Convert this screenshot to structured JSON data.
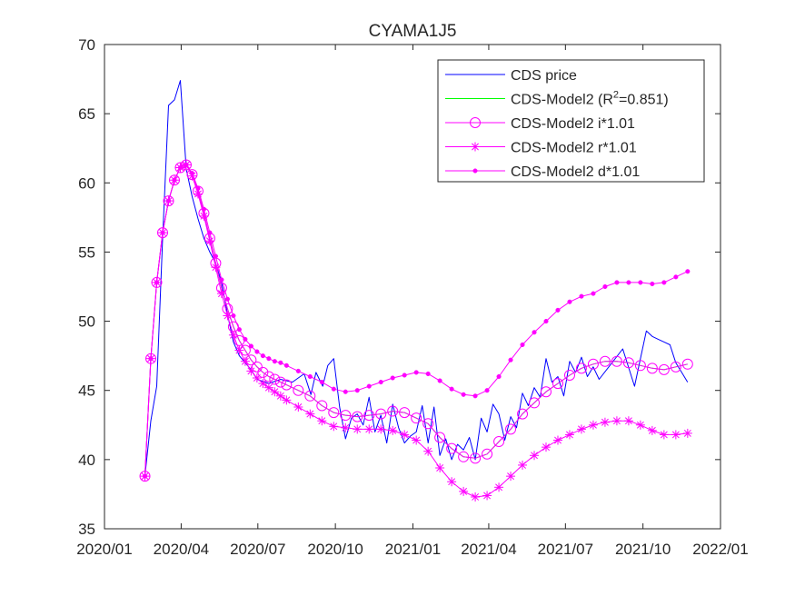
{
  "chart_data": {
    "type": "line",
    "title": "CYAMA1J5",
    "xlabel": "",
    "ylabel": "",
    "x_is_date": true,
    "xlim": [
      "2020-01-01",
      "2022-01-01"
    ],
    "ylim": [
      35,
      70
    ],
    "x_ticks": [
      "2020-01-01",
      "2020-04-01",
      "2020-07-01",
      "2020-10-01",
      "2021-01-01",
      "2021-04-01",
      "2021-07-01",
      "2021-10-01",
      "2022-01-01"
    ],
    "x_tick_labels": [
      "2020/01",
      "2020/04",
      "2020/07",
      "2020/10",
      "2021/01",
      "2021/04",
      "2021/07",
      "2021/10",
      "2022/01"
    ],
    "y_ticks": [
      35,
      40,
      45,
      50,
      55,
      60,
      65,
      70
    ],
    "y_tick_labels": [
      "35",
      "40",
      "45",
      "50",
      "55",
      "60",
      "65",
      "70"
    ],
    "grid": false,
    "legend_position": "top-right",
    "colors": {
      "price": "#0000ff",
      "model": "#00ff00",
      "sens": "#ff00ff",
      "axis": "#262626"
    },
    "legend": [
      {
        "label": "CDS price",
        "marker": "none",
        "color": "#0000ff"
      },
      {
        "label_pre": "CDS-Model2 (R",
        "label_sup": "2",
        "label_post": "=0.851)",
        "marker": "none",
        "color": "#00ff00"
      },
      {
        "label": "CDS-Model2 i*1.01",
        "marker": "circle",
        "color": "#ff00ff"
      },
      {
        "label": "CDS-Model2 r*1.01",
        "marker": "star",
        "color": "#ff00ff"
      },
      {
        "label": "CDS-Model2 d*1.01",
        "marker": "dot",
        "color": "#ff00ff"
      }
    ],
    "series": [
      {
        "name": "CDS price",
        "color": "#0000ff",
        "marker": "none",
        "x": [
          "2020-02-18",
          "2020-02-25",
          "2020-03-03",
          "2020-03-10",
          "2020-03-17",
          "2020-03-24",
          "2020-03-31",
          "2020-04-07",
          "2020-04-14",
          "2020-04-21",
          "2020-04-28",
          "2020-05-05",
          "2020-05-12",
          "2020-05-19",
          "2020-05-26",
          "2020-06-02",
          "2020-06-09",
          "2020-06-16",
          "2020-06-23",
          "2020-06-30",
          "2020-07-14",
          "2020-07-28",
          "2020-08-11",
          "2020-08-25",
          "2020-09-02",
          "2020-09-08",
          "2020-09-16",
          "2020-09-22",
          "2020-09-29",
          "2020-10-06",
          "2020-10-13",
          "2020-10-20",
          "2020-10-27",
          "2020-11-03",
          "2020-11-10",
          "2020-11-17",
          "2020-11-24",
          "2020-12-01",
          "2020-12-08",
          "2020-12-15",
          "2020-12-22",
          "2020-12-29",
          "2021-01-05",
          "2021-01-12",
          "2021-01-19",
          "2021-01-26",
          "2021-02-02",
          "2021-02-09",
          "2021-02-16",
          "2021-02-23",
          "2021-03-02",
          "2021-03-09",
          "2021-03-16",
          "2021-03-23",
          "2021-03-30",
          "2021-04-06",
          "2021-04-13",
          "2021-04-20",
          "2021-04-27",
          "2021-05-04",
          "2021-05-11",
          "2021-05-18",
          "2021-05-25",
          "2021-06-01",
          "2021-06-08",
          "2021-06-15",
          "2021-06-22",
          "2021-06-29",
          "2021-07-06",
          "2021-07-13",
          "2021-07-20",
          "2021-07-27",
          "2021-08-03",
          "2021-08-10",
          "2021-08-24",
          "2021-09-07",
          "2021-09-21",
          "2021-10-05",
          "2021-10-12",
          "2021-10-19",
          "2021-10-26",
          "2021-11-02",
          "2021-11-09",
          "2021-11-16",
          "2021-11-23"
        ],
        "y": [
          38.8,
          42.8,
          45.3,
          56.0,
          65.6,
          66.0,
          67.4,
          61.0,
          59.0,
          57.4,
          56.0,
          55.0,
          54.2,
          52.8,
          50.5,
          48.5,
          47.5,
          47.0,
          46.5,
          45.8,
          45.5,
          45.8,
          45.6,
          46.2,
          44.7,
          46.3,
          45.3,
          46.8,
          47.3,
          43.8,
          41.5,
          43.0,
          43.3,
          42.5,
          44.5,
          42.0,
          43.2,
          41.2,
          44.0,
          42.3,
          41.2,
          41.7,
          42.0,
          43.9,
          41.2,
          43.8,
          40.3,
          41.5,
          40.0,
          41.1,
          40.7,
          41.6,
          40.0,
          43.0,
          42.0,
          44.0,
          43.3,
          41.4,
          43.1,
          42.3,
          44.8,
          43.9,
          45.2,
          44.5,
          47.3,
          45.6,
          46.0,
          44.6,
          47.1,
          46.3,
          47.4,
          46.0,
          46.7,
          45.8,
          46.9,
          48.0,
          45.3,
          49.3,
          48.9,
          48.7,
          48.5,
          48.3,
          47.0,
          46.3,
          45.6
        ]
      },
      {
        "name": "CDS-Model2 (R2=0.851)",
        "color": "#00ff00",
        "marker": "none",
        "x": [
          "2020-02-18",
          "2020-02-25",
          "2020-03-03",
          "2020-03-10",
          "2020-03-17",
          "2020-03-24",
          "2020-03-31",
          "2020-04-07",
          "2020-04-14",
          "2020-04-21",
          "2020-04-28",
          "2020-05-05",
          "2020-05-12",
          "2020-05-19",
          "2020-05-26",
          "2020-06-02",
          "2020-06-09",
          "2020-06-16",
          "2020-06-23",
          "2020-06-30",
          "2020-07-07",
          "2020-07-14",
          "2020-07-21",
          "2020-07-28",
          "2020-08-04",
          "2020-08-18",
          "2020-09-01",
          "2020-09-15",
          "2020-09-29",
          "2020-10-13",
          "2020-10-27",
          "2020-11-10",
          "2020-11-24",
          "2020-12-08",
          "2020-12-22",
          "2021-01-05",
          "2021-01-19",
          "2021-02-02",
          "2021-02-16",
          "2021-03-02",
          "2021-03-16",
          "2021-03-30",
          "2021-04-13",
          "2021-04-27",
          "2021-05-11",
          "2021-05-25",
          "2021-06-08",
          "2021-06-22",
          "2021-07-06",
          "2021-07-20",
          "2021-08-03",
          "2021-08-17",
          "2021-08-31",
          "2021-09-14",
          "2021-09-28",
          "2021-10-12",
          "2021-10-26",
          "2021-11-09",
          "2021-11-23"
        ],
        "y": [
          38.8,
          47.3,
          52.8,
          56.4,
          58.7,
          60.2,
          61.1,
          61.3,
          60.6,
          59.4,
          57.8,
          56.0,
          54.2,
          52.4,
          50.9,
          49.6,
          48.6,
          47.9,
          47.2,
          46.7,
          46.3,
          46.0,
          45.8,
          45.6,
          45.4,
          45.0,
          44.6,
          43.9,
          43.4,
          43.2,
          43.1,
          43.2,
          43.3,
          43.5,
          43.4,
          43.0,
          42.6,
          41.6,
          40.8,
          40.2,
          40.1,
          40.4,
          41.3,
          42.2,
          43.3,
          44.1,
          44.9,
          45.5,
          46.1,
          46.6,
          46.9,
          47.1,
          47.1,
          47.0,
          46.8,
          46.6,
          46.5,
          46.7,
          46.9
        ]
      },
      {
        "name": "CDS-Model2 i*1.01",
        "color": "#ff00ff",
        "marker": "circle",
        "x": [
          "2020-02-18",
          "2020-02-25",
          "2020-03-03",
          "2020-03-10",
          "2020-03-17",
          "2020-03-24",
          "2020-03-31",
          "2020-04-07",
          "2020-04-14",
          "2020-04-21",
          "2020-04-28",
          "2020-05-05",
          "2020-05-12",
          "2020-05-19",
          "2020-05-26",
          "2020-06-02",
          "2020-06-09",
          "2020-06-16",
          "2020-06-23",
          "2020-06-30",
          "2020-07-07",
          "2020-07-14",
          "2020-07-21",
          "2020-07-28",
          "2020-08-04",
          "2020-08-18",
          "2020-09-01",
          "2020-09-15",
          "2020-09-29",
          "2020-10-13",
          "2020-10-27",
          "2020-11-10",
          "2020-11-24",
          "2020-12-08",
          "2020-12-22",
          "2021-01-05",
          "2021-01-19",
          "2021-02-02",
          "2021-02-16",
          "2021-03-02",
          "2021-03-16",
          "2021-03-30",
          "2021-04-13",
          "2021-04-27",
          "2021-05-11",
          "2021-05-25",
          "2021-06-08",
          "2021-06-22",
          "2021-07-06",
          "2021-07-20",
          "2021-08-03",
          "2021-08-17",
          "2021-08-31",
          "2021-09-14",
          "2021-09-28",
          "2021-10-12",
          "2021-10-26",
          "2021-11-09",
          "2021-11-23"
        ],
        "y": [
          38.8,
          47.3,
          52.8,
          56.4,
          58.7,
          60.2,
          61.1,
          61.3,
          60.6,
          59.4,
          57.8,
          56.0,
          54.2,
          52.4,
          50.9,
          49.6,
          48.6,
          47.9,
          47.2,
          46.7,
          46.3,
          46.0,
          45.8,
          45.6,
          45.4,
          45.0,
          44.6,
          43.9,
          43.4,
          43.2,
          43.1,
          43.2,
          43.3,
          43.5,
          43.4,
          43.0,
          42.6,
          41.6,
          40.8,
          40.2,
          40.1,
          40.4,
          41.3,
          42.2,
          43.3,
          44.1,
          44.9,
          45.5,
          46.1,
          46.6,
          46.9,
          47.1,
          47.1,
          47.0,
          46.8,
          46.6,
          46.5,
          46.7,
          46.9
        ]
      },
      {
        "name": "CDS-Model2 r*1.01",
        "color": "#ff00ff",
        "marker": "star",
        "x": [
          "2020-02-18",
          "2020-02-25",
          "2020-03-03",
          "2020-03-10",
          "2020-03-17",
          "2020-03-24",
          "2020-03-31",
          "2020-04-07",
          "2020-04-14",
          "2020-04-21",
          "2020-04-28",
          "2020-05-05",
          "2020-05-12",
          "2020-05-19",
          "2020-05-26",
          "2020-06-02",
          "2020-06-09",
          "2020-06-16",
          "2020-06-23",
          "2020-06-30",
          "2020-07-07",
          "2020-07-14",
          "2020-07-21",
          "2020-07-28",
          "2020-08-04",
          "2020-08-18",
          "2020-09-01",
          "2020-09-15",
          "2020-09-29",
          "2020-10-13",
          "2020-10-27",
          "2020-11-10",
          "2020-11-24",
          "2020-12-08",
          "2020-12-22",
          "2021-01-05",
          "2021-01-19",
          "2021-02-02",
          "2021-02-16",
          "2021-03-02",
          "2021-03-16",
          "2021-03-30",
          "2021-04-13",
          "2021-04-27",
          "2021-05-11",
          "2021-05-25",
          "2021-06-08",
          "2021-06-22",
          "2021-07-06",
          "2021-07-20",
          "2021-08-03",
          "2021-08-17",
          "2021-08-31",
          "2021-09-14",
          "2021-09-28",
          "2021-10-12",
          "2021-10-26",
          "2021-11-09",
          "2021-11-23"
        ],
        "y": [
          38.8,
          47.3,
          52.8,
          56.4,
          58.7,
          60.2,
          61.1,
          61.3,
          60.5,
          59.2,
          57.6,
          55.8,
          53.9,
          52.0,
          50.4,
          49.0,
          47.9,
          47.1,
          46.4,
          45.9,
          45.5,
          45.2,
          44.9,
          44.6,
          44.3,
          43.8,
          43.3,
          42.8,
          42.4,
          42.3,
          42.2,
          42.2,
          42.2,
          42.1,
          41.8,
          41.4,
          40.6,
          39.4,
          38.4,
          37.7,
          37.3,
          37.4,
          38.0,
          38.8,
          39.6,
          40.3,
          40.9,
          41.4,
          41.8,
          42.2,
          42.5,
          42.7,
          42.8,
          42.8,
          42.5,
          42.1,
          41.8,
          41.8,
          41.9
        ]
      },
      {
        "name": "CDS-Model2 d*1.01",
        "color": "#ff00ff",
        "marker": "dot",
        "x": [
          "2020-02-18",
          "2020-02-25",
          "2020-03-03",
          "2020-03-10",
          "2020-03-17",
          "2020-03-24",
          "2020-03-31",
          "2020-04-07",
          "2020-04-14",
          "2020-04-21",
          "2020-04-28",
          "2020-05-05",
          "2020-05-12",
          "2020-05-19",
          "2020-05-26",
          "2020-06-02",
          "2020-06-09",
          "2020-06-16",
          "2020-06-23",
          "2020-06-30",
          "2020-07-07",
          "2020-07-14",
          "2020-07-21",
          "2020-07-28",
          "2020-08-04",
          "2020-08-18",
          "2020-09-01",
          "2020-09-15",
          "2020-09-29",
          "2020-10-13",
          "2020-10-27",
          "2020-11-10",
          "2020-11-24",
          "2020-12-08",
          "2020-12-22",
          "2021-01-05",
          "2021-01-19",
          "2021-02-02",
          "2021-02-16",
          "2021-03-02",
          "2021-03-16",
          "2021-03-30",
          "2021-04-13",
          "2021-04-27",
          "2021-05-11",
          "2021-05-25",
          "2021-06-08",
          "2021-06-22",
          "2021-07-06",
          "2021-07-20",
          "2021-08-03",
          "2021-08-17",
          "2021-08-31",
          "2021-09-14",
          "2021-09-28",
          "2021-10-12",
          "2021-10-26",
          "2021-11-09",
          "2021-11-23"
        ],
        "y": [
          38.8,
          47.3,
          52.8,
          56.4,
          58.7,
          60.2,
          61.1,
          61.3,
          60.7,
          59.6,
          58.1,
          56.4,
          54.7,
          53.0,
          51.6,
          50.4,
          49.4,
          48.7,
          48.2,
          47.8,
          47.5,
          47.3,
          47.1,
          47.0,
          46.8,
          46.4,
          46.0,
          45.6,
          45.1,
          44.9,
          45.0,
          45.3,
          45.6,
          45.9,
          46.1,
          46.3,
          46.2,
          45.7,
          45.1,
          44.7,
          44.6,
          45.0,
          46.0,
          47.2,
          48.3,
          49.2,
          50.0,
          50.8,
          51.4,
          51.8,
          52.0,
          52.5,
          52.8,
          52.8,
          52.8,
          52.7,
          52.8,
          53.2,
          53.6
        ]
      }
    ]
  }
}
